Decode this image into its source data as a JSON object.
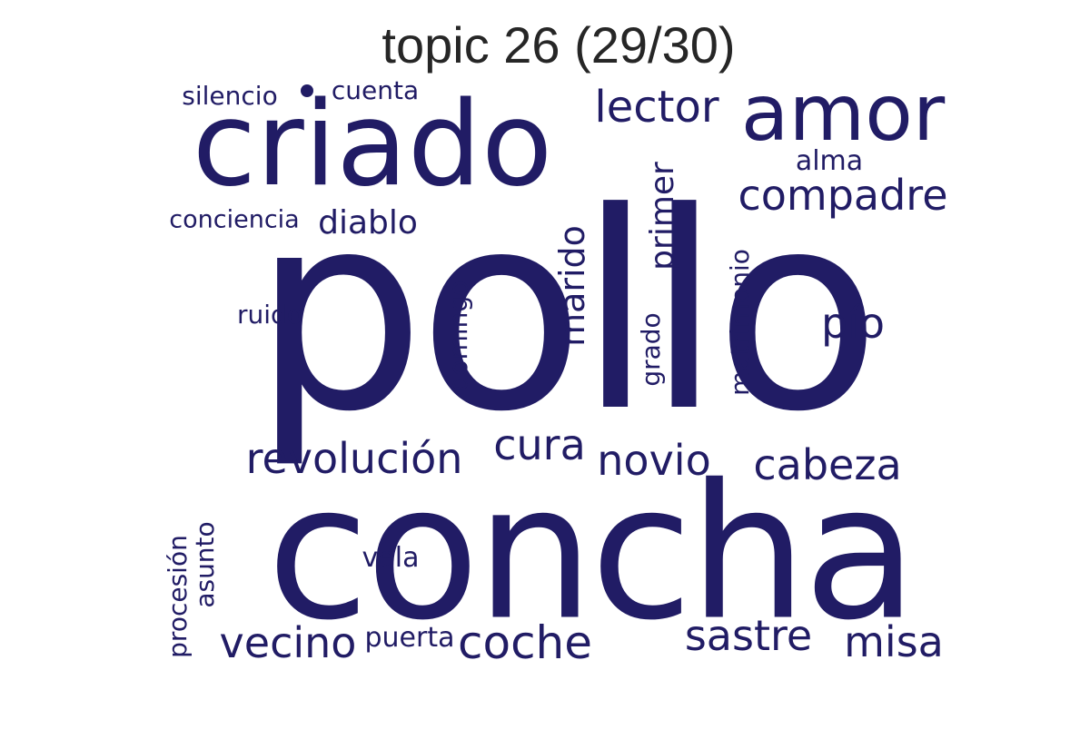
{
  "title": "topic 26 (29/30)",
  "text_color": "#211c65",
  "words": {
    "pollo": "pollo",
    "concha": "concha",
    "criado": "criado",
    "amor": "amor",
    "lector": "lector",
    "compadre": "compadre",
    "alma": "alma",
    "silencio": "silencio",
    "cuenta": "cuenta",
    "conciencia": "conciencia",
    "diablo": "diablo",
    "ruido": "ruido",
    "domingo": "domingo",
    "marido": "marido",
    "primer": "primer",
    "grado": "grado",
    "matrimonio": "matrimonio",
    "pio": "pío",
    "revolucion": "revolución",
    "cura": "cura",
    "novio": "novio",
    "cabeza": "cabeza",
    "procesion": "procesión",
    "asunto": "asunto",
    "vela": "vela",
    "vecino": "vecino",
    "puerta": "puerta",
    "coche": "coche",
    "sastre": "sastre",
    "misa": "misa"
  }
}
